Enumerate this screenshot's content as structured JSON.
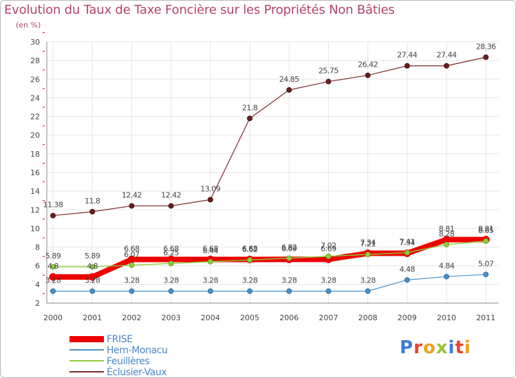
{
  "title": "Evolution du Taux de Taxe Foncière sur les Propriétés Non Bâties",
  "subtitle": "(en %)",
  "brand": "Proxiti",
  "colors": {
    "title": "#b5436e",
    "legend_text": "#4a88c7",
    "grid": "#e5e5e5",
    "axis_tick": "#cc0000"
  },
  "chart_data": {
    "type": "line",
    "title": "Evolution du Taux de Taxe Foncière sur les Propriétés Non Bâties",
    "ylabel": "(en %)",
    "xlabel": "",
    "x": [
      "2000",
      "2001",
      "2002",
      "2003",
      "2004",
      "2005",
      "2006",
      "2007",
      "2008",
      "2009",
      "2010",
      "2011"
    ],
    "ylim": [
      2,
      30
    ],
    "yticks": [
      2,
      4,
      6,
      8,
      10,
      12,
      14,
      16,
      18,
      20,
      22,
      24,
      26,
      28,
      30
    ],
    "grid": true,
    "legend_position": "bottom-left",
    "series": [
      {
        "name": "FRISE",
        "color": "#ee0000",
        "values": [
          4.8,
          4.8,
          6.68,
          6.68,
          6.68,
          6.68,
          6.69,
          6.69,
          7.34,
          7.34,
          8.81,
          8.81
        ],
        "labels": [
          "4.8",
          "4.8",
          "6.68",
          "6.68",
          "6.68",
          "6.68",
          "6.69",
          "6.69",
          "7.34",
          "7.34",
          "8.81",
          "8.81"
        ]
      },
      {
        "name": "Hem-Monacu",
        "color": "#4a90c8",
        "values": [
          3.28,
          3.28,
          3.28,
          3.28,
          3.28,
          3.28,
          3.28,
          3.28,
          3.28,
          4.48,
          4.84,
          5.07
        ],
        "labels": [
          "3.28",
          "3.28",
          "3.28",
          "3.28",
          "3.28",
          "3.28",
          "3.28",
          "3.28",
          "3.28",
          "4.48",
          "4.84",
          "5.07"
        ]
      },
      {
        "name": "Feuillères",
        "color": "#8ccf3a",
        "values": [
          5.89,
          5.89,
          6.07,
          6.25,
          6.44,
          6.62,
          6.82,
          7.02,
          7.21,
          7.41,
          8.28,
          8.65
        ],
        "labels": [
          "5.89",
          "5.89",
          "6.07",
          "6.25",
          "6.44",
          "6.62",
          "6.82",
          "7.02",
          "7.21",
          "7.41",
          "8.28",
          "8.65"
        ]
      },
      {
        "name": "Éclusier-Vaux",
        "color": "#7b2a2a",
        "values": [
          11.38,
          11.8,
          12.42,
          12.42,
          13.09,
          21.8,
          24.85,
          25.75,
          26.42,
          27.44,
          27.44,
          28.36
        ],
        "labels": [
          "11.38",
          "11.8",
          "12.42",
          "12.42",
          "13.09",
          "21.8",
          "24.85",
          "25.75",
          "26.42",
          "27.44",
          "27.44",
          "28.36"
        ]
      }
    ]
  }
}
